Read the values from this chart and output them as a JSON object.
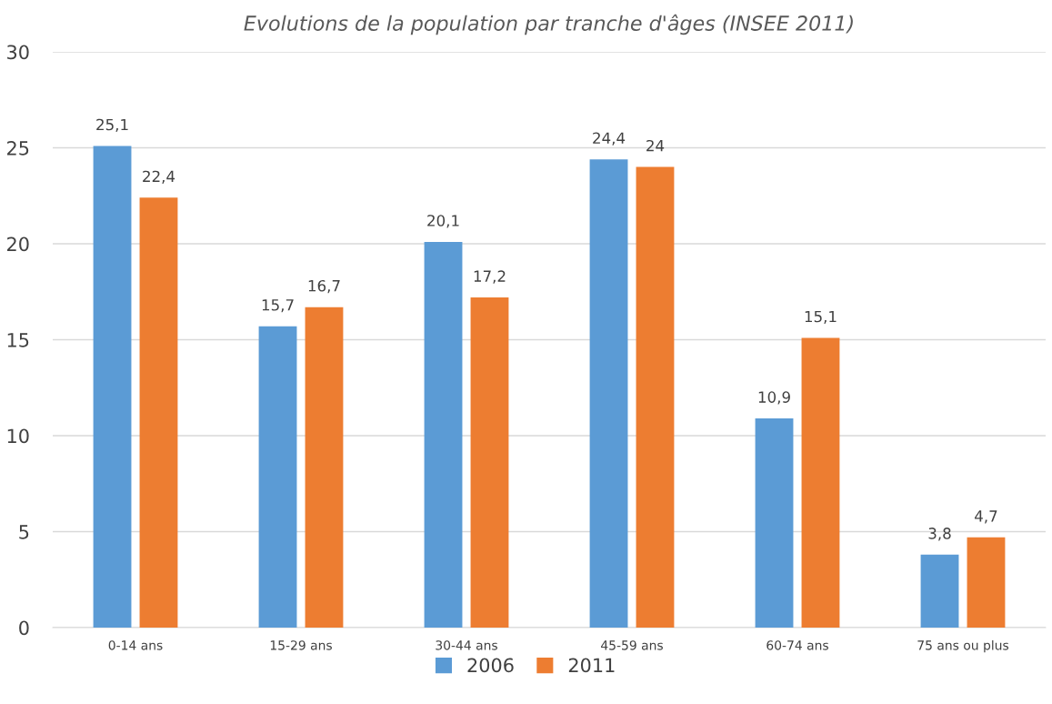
{
  "chart_data": {
    "type": "bar",
    "title": "Evolutions de la population par tranche d'âges (INSEE 2011)",
    "categories": [
      "0-14 ans",
      "15-29 ans",
      "30-44 ans",
      "45-59 ans",
      "60-74 ans",
      "75 ans ou plus"
    ],
    "series": [
      {
        "name": "2006",
        "color": "#5b9bd5",
        "values": [
          25.1,
          15.7,
          20.1,
          24.4,
          10.9,
          3.8
        ],
        "value_labels": [
          "25,1",
          "15,7",
          "20,1",
          "24,4",
          "10,9",
          "3,8"
        ]
      },
      {
        "name": "2011",
        "color": "#ed7d31",
        "values": [
          22.4,
          16.7,
          17.2,
          24,
          15.1,
          4.7
        ],
        "value_labels": [
          "22,4",
          "16,7",
          "17,2",
          "24",
          "15,1",
          "4,7"
        ]
      }
    ],
    "ylim": [
      0,
      30
    ],
    "yticks": [
      0,
      5,
      10,
      15,
      20,
      25,
      30
    ],
    "grid": "y",
    "legend": "bottom"
  }
}
